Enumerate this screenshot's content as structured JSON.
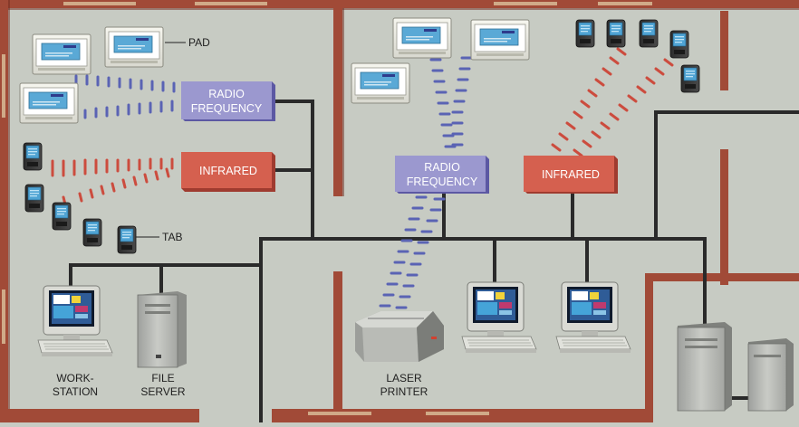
{
  "labels": {
    "pad": "PAD",
    "tab": "TAB",
    "rf_left_line1": "RADIO",
    "rf_left_line2": "FREQUENCY",
    "ir_left": "INFRARED",
    "rf_center_line1": "RADIO",
    "rf_center_line2": "FREQUENCY",
    "ir_center": "INFRARED",
    "workstation_line1": "WORK-",
    "workstation_line2": "STATION",
    "fileserver_line1": "FILE",
    "fileserver_line2": "SERVER",
    "printer_line1": "LASER",
    "printer_line2": "PRINTER"
  },
  "colors": {
    "floor": "#c7cbc3",
    "wall": "#a14a37",
    "wall_edge": "#6d2a1d",
    "cable": "#2a2a2a",
    "radio_box": "#9b98cf",
    "radio_box_dark": "#5c58a3",
    "infrared_box": "#d5604f",
    "infrared_box_dark": "#9f3b2f",
    "radio_wave": "#5a63b4",
    "infrared_wave": "#cc4c3e",
    "screen": "#3f96c8"
  },
  "icons": [
    "pad-icon",
    "tab-icon",
    "workstation-icon",
    "file-server-icon",
    "laser-printer-icon",
    "server-icon"
  ]
}
